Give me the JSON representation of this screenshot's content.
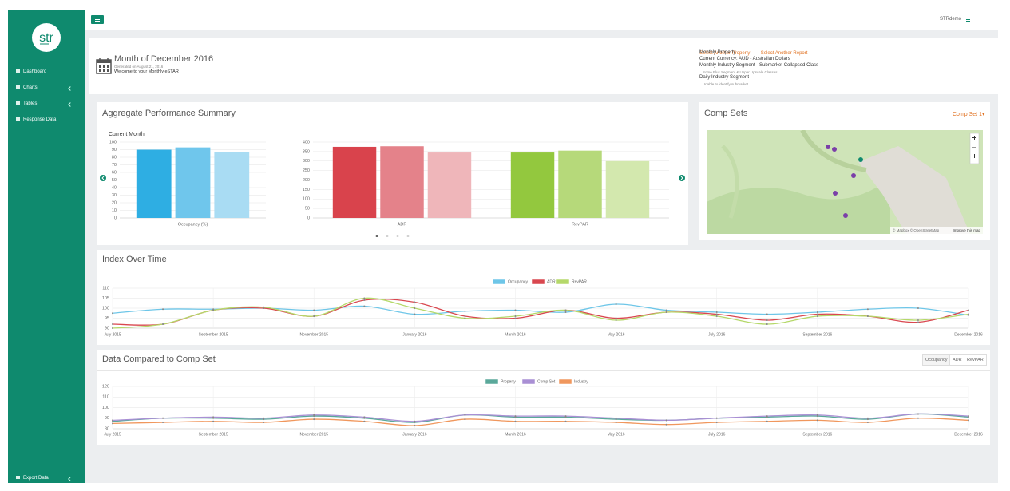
{
  "sidebar": {
    "logo": "str",
    "nav": [
      "Dashboard",
      "Charts",
      "Tables",
      "Response Data"
    ],
    "footer": "Export Data"
  },
  "topbar": {
    "user": "STRdemo"
  },
  "header": {
    "title": "Month of December 2016",
    "generated": "Generated on August 21, 2016",
    "welcome": "Welcome to your Monthly eSTAR",
    "links": [
      "Select Another Property",
      "Select Another Report"
    ],
    "details": [
      "Monthly Property",
      "Current Currency: AUD - Australian Dollars",
      "Monthly Industry Segment - Submarket Collapsed Class"
    ],
    "note1": "Some Plus Segment & Upper Upscale Classes",
    "detail2": "Daily Industry Segment -",
    "note2": "Unable to identify submarket"
  },
  "panels": {
    "summary": "Aggregate Performance Summary",
    "comp_sets": "Comp Sets",
    "comp_set_menu": "Comp Set 1",
    "map_attribution": "© Mapbox © OpenStreetMap",
    "map_link": "Improve this map",
    "index": "Index Over Time",
    "compare": "Data Compared to Comp Set",
    "compare_buttons": [
      "Occupancy",
      "ADR",
      "RevPAR"
    ]
  },
  "chart_data": [
    {
      "type": "bar",
      "title": "Current Month",
      "categories": [
        "Occupancy (%)"
      ],
      "series": [
        {
          "values": [
            90
          ]
        },
        {
          "values": [
            93
          ]
        },
        {
          "values": [
            87
          ]
        }
      ],
      "colors": [
        [
          "#2eaee3",
          "#6fc6ec",
          "#a9dcf3"
        ]
      ],
      "ylim": [
        0,
        100
      ],
      "yticks": [
        0,
        10,
        20,
        30,
        40,
        50,
        60,
        70,
        80,
        90,
        100
      ],
      "grid": true
    },
    {
      "type": "bar",
      "categories": [
        "ADR",
        "RevPAR"
      ],
      "series": [
        {
          "values": [
            375,
            345
          ]
        },
        {
          "values": [
            378,
            355
          ]
        },
        {
          "values": [
            345,
            300
          ]
        }
      ],
      "colors": [
        [
          "#d9434c",
          "#e4828a",
          "#efb6ba"
        ],
        [
          "#93c83e",
          "#b6d97a",
          "#d3e8ae"
        ]
      ],
      "ylim": [
        0,
        400
      ],
      "yticks": [
        0,
        50,
        100,
        150,
        200,
        250,
        300,
        350,
        400
      ],
      "grid": true
    },
    {
      "type": "line",
      "legend": "top",
      "categories": [
        "July 2015",
        null,
        "September 2015",
        null,
        "November 2015",
        null,
        "January 2016",
        null,
        "March 2016",
        null,
        "May 2016",
        null,
        "July 2016",
        null,
        "September 2016",
        null,
        null,
        "December 2016"
      ],
      "series": [
        {
          "name": "Occupancy",
          "color": "#6ec6e8",
          "values": [
            97.5,
            99.5,
            99.5,
            100,
            99,
            101,
            97,
            98.5,
            99,
            98,
            102,
            99,
            98,
            97,
            98,
            99.5,
            100,
            96.5
          ]
        },
        {
          "name": "ADR",
          "color": "#d9474f",
          "values": [
            92,
            92,
            99,
            100,
            96,
            104,
            103,
            96,
            95,
            99,
            95,
            98,
            97,
            94,
            97,
            96,
            93,
            99
          ]
        },
        {
          "name": "RevPAR",
          "color": "#b5d86a",
          "values": [
            90,
            92,
            99,
            100.5,
            96,
            105,
            100,
            95,
            96,
            99,
            94,
            98,
            96,
            92,
            96,
            96,
            94,
            97
          ]
        }
      ],
      "ylim": [
        90,
        110
      ],
      "yticks": [
        90,
        95,
        100,
        105,
        110
      ],
      "grid": true
    },
    {
      "type": "line",
      "legend": "top",
      "categories": [
        "July 2015",
        null,
        "September 2015",
        null,
        "November 2015",
        null,
        "January 2016",
        null,
        "March 2016",
        null,
        "May 2016",
        null,
        "July 2016",
        null,
        "September 2016",
        null,
        null,
        "December 2016"
      ],
      "series": [
        {
          "name": "Property",
          "color": "#5aa89a",
          "values": [
            87,
            90,
            90,
            89,
            92,
            90,
            86,
            93,
            91,
            91,
            89,
            88,
            90,
            91,
            92,
            89,
            94,
            91
          ]
        },
        {
          "name": "Comp Set",
          "color": "#a98fd4",
          "values": [
            88,
            90,
            91,
            90,
            93,
            91,
            87,
            93,
            92,
            92,
            90,
            88,
            90,
            92,
            93,
            90,
            94,
            92
          ]
        },
        {
          "name": "Industry",
          "color": "#f0975d",
          "values": [
            85,
            86,
            87,
            86,
            89,
            87,
            83,
            89,
            87,
            87,
            86,
            84,
            86,
            87,
            88,
            86,
            90,
            88
          ]
        }
      ],
      "ylim": [
        80,
        120
      ],
      "yticks": [
        80,
        90,
        100,
        110,
        120
      ],
      "grid": true
    }
  ]
}
